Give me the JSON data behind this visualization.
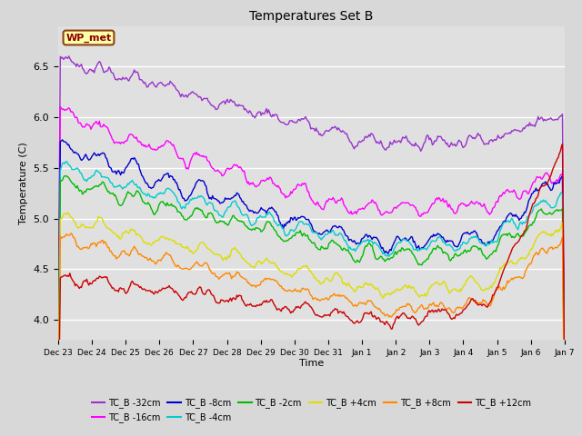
{
  "title": "Temperatures Set B",
  "xlabel": "Time",
  "ylabel": "Temperature (C)",
  "ylim": [
    3.8,
    6.9
  ],
  "background_color": "#d8d8d8",
  "plot_bg_color": "#e0e0e0",
  "annotation_text": "WP_met",
  "annotation_box_color": "#ffffaa",
  "annotation_border_color": "#8b4513",
  "annotation_text_color": "#8b0000",
  "series": [
    {
      "label": "TC_B -32cm",
      "color": "#9933cc"
    },
    {
      "label": "TC_B -16cm",
      "color": "#ff00ff"
    },
    {
      "label": "TC_B -8cm",
      "color": "#0000cc"
    },
    {
      "label": "TC_B -4cm",
      "color": "#00cccc"
    },
    {
      "label": "TC_B -2cm",
      "color": "#00bb00"
    },
    {
      "label": "TC_B +4cm",
      "color": "#dddd00"
    },
    {
      "label": "TC_B +8cm",
      "color": "#ff8800"
    },
    {
      "label": "TC_B +12cm",
      "color": "#cc0000"
    }
  ],
  "n_points": 480,
  "x_tick_labels": [
    "Dec 23",
    "Dec 24",
    "Dec 25",
    "Dec 26",
    "Dec 27",
    "Dec 28",
    "Dec 29",
    "Dec 30",
    "Dec 31",
    "Jan 1",
    "Jan 2",
    "Jan 3",
    "Jan 4",
    "Jan 5",
    "Jan 6",
    "Jan 7"
  ],
  "n_ticks": 16
}
